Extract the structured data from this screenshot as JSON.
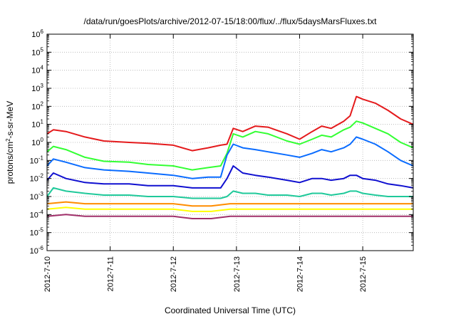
{
  "chart_data": {
    "type": "line",
    "title": "/data/run/goesPlots/archive/2012-07-15/18:00/flux/../flux/5daysMarsFluxes.txt",
    "xlabel": "Coordinated Universal Time (UTC)",
    "ylabel_parts": [
      "protons/cm",
      "2",
      "-s-sr-MeV"
    ],
    "y_scale": "log",
    "ylim": [
      1e-06,
      1000000.0
    ],
    "x_ticks": [
      "2012-7-10",
      "2012-7-11",
      "2012-7-12",
      "2012-7-13",
      "2012-7-14",
      "2012-7-15"
    ],
    "xlim_days": [
      0,
      5.8
    ],
    "y_tick_exponents": [
      -6,
      -5,
      -4,
      -3,
      -2,
      -1,
      0,
      1,
      2,
      3,
      4,
      5,
      6
    ],
    "grid": true,
    "series": [
      {
        "color": "#e41a1c",
        "x": [
          0.0,
          0.1,
          0.3,
          0.6,
          0.9,
          1.3,
          1.6,
          2.0,
          2.3,
          2.55,
          2.75,
          2.85,
          2.95,
          3.1,
          3.3,
          3.5,
          3.8,
          4.0,
          4.2,
          4.35,
          4.5,
          4.7,
          4.8,
          4.9,
          5.0,
          5.2,
          5.4,
          5.6,
          5.8
        ],
        "y": [
          3,
          5,
          4,
          2,
          1.2,
          1,
          0.9,
          0.7,
          0.35,
          0.5,
          0.7,
          0.8,
          6,
          4,
          8,
          7,
          3,
          1.5,
          4,
          8,
          6,
          15,
          30,
          350,
          250,
          150,
          60,
          20,
          10
        ]
      },
      {
        "color": "#33ff33",
        "x": [
          0.0,
          0.1,
          0.3,
          0.6,
          0.9,
          1.3,
          1.6,
          2.0,
          2.3,
          2.55,
          2.75,
          2.85,
          2.95,
          3.1,
          3.3,
          3.5,
          3.8,
          4.0,
          4.2,
          4.35,
          4.5,
          4.7,
          4.8,
          4.9,
          5.0,
          5.2,
          5.4,
          5.6,
          5.8
        ],
        "y": [
          0.3,
          0.6,
          0.4,
          0.15,
          0.09,
          0.08,
          0.06,
          0.05,
          0.03,
          0.04,
          0.05,
          0.25,
          3,
          2,
          4,
          3,
          1.2,
          0.8,
          1.5,
          2.5,
          2,
          5,
          7,
          15,
          12,
          6,
          3,
          1,
          0.5
        ]
      },
      {
        "color": "#0a6cff",
        "x": [
          0.0,
          0.1,
          0.3,
          0.6,
          0.9,
          1.3,
          1.6,
          2.0,
          2.3,
          2.55,
          2.75,
          2.85,
          2.95,
          3.1,
          3.3,
          3.5,
          3.8,
          4.0,
          4.2,
          4.35,
          4.5,
          4.7,
          4.8,
          4.9,
          5.0,
          5.2,
          5.4,
          5.6,
          5.8
        ],
        "y": [
          0.05,
          0.12,
          0.08,
          0.04,
          0.03,
          0.025,
          0.02,
          0.015,
          0.01,
          0.012,
          0.012,
          0.2,
          0.8,
          0.5,
          0.4,
          0.3,
          0.2,
          0.15,
          0.25,
          0.4,
          0.3,
          0.5,
          0.8,
          2,
          1.5,
          0.8,
          0.3,
          0.1,
          0.05
        ]
      },
      {
        "color": "#1010d0",
        "x": [
          0.0,
          0.1,
          0.3,
          0.6,
          0.9,
          1.3,
          1.6,
          2.0,
          2.3,
          2.55,
          2.75,
          2.85,
          2.95,
          3.1,
          3.3,
          3.5,
          3.8,
          4.0,
          4.2,
          4.35,
          4.5,
          4.7,
          4.8,
          4.9,
          5.0,
          5.2,
          5.4,
          5.6,
          5.8
        ],
        "y": [
          0.008,
          0.02,
          0.01,
          0.006,
          0.005,
          0.005,
          0.004,
          0.004,
          0.003,
          0.003,
          0.003,
          0.01,
          0.05,
          0.02,
          0.015,
          0.012,
          0.008,
          0.006,
          0.01,
          0.01,
          0.008,
          0.01,
          0.015,
          0.015,
          0.01,
          0.008,
          0.005,
          0.004,
          0.003
        ]
      },
      {
        "color": "#1fc99a",
        "x": [
          0.0,
          0.1,
          0.3,
          0.6,
          0.9,
          1.3,
          1.6,
          2.0,
          2.3,
          2.55,
          2.75,
          2.85,
          2.95,
          3.1,
          3.3,
          3.5,
          3.8,
          4.0,
          4.2,
          4.35,
          4.5,
          4.7,
          4.8,
          4.9,
          5.0,
          5.2,
          5.4,
          5.6,
          5.8
        ],
        "y": [
          0.001,
          0.003,
          0.002,
          0.0015,
          0.0012,
          0.0012,
          0.001,
          0.001,
          0.0008,
          0.0008,
          0.0008,
          0.001,
          0.002,
          0.0015,
          0.0015,
          0.0012,
          0.0012,
          0.001,
          0.0015,
          0.0015,
          0.0012,
          0.0015,
          0.002,
          0.002,
          0.0015,
          0.0012,
          0.001,
          0.001,
          0.001
        ]
      },
      {
        "color": "#ff8c00",
        "x": [
          0.0,
          0.3,
          0.6,
          0.9,
          1.3,
          1.6,
          2.0,
          2.3,
          2.6,
          2.9,
          3.2,
          3.5,
          3.8,
          4.1,
          4.4,
          4.7,
          5.0,
          5.3,
          5.6,
          5.8
        ],
        "y": [
          0.0004,
          0.0005,
          0.0004,
          0.0004,
          0.0004,
          0.0004,
          0.0004,
          0.0003,
          0.0003,
          0.0004,
          0.0004,
          0.0004,
          0.0004,
          0.0004,
          0.0004,
          0.0004,
          0.0004,
          0.0004,
          0.0004,
          0.0004
        ]
      },
      {
        "color": "#ffff00",
        "x": [
          0.0,
          0.3,
          0.6,
          0.9,
          1.3,
          1.6,
          2.0,
          2.3,
          2.6,
          2.9,
          3.2,
          3.5,
          3.8,
          4.1,
          4.4,
          4.7,
          5.0,
          5.3,
          5.6,
          5.8
        ],
        "y": [
          0.0002,
          0.00025,
          0.0002,
          0.0002,
          0.0002,
          0.0002,
          0.0002,
          0.00015,
          0.00015,
          0.0002,
          0.0002,
          0.0002,
          0.0002,
          0.0002,
          0.0002,
          0.0002,
          0.0002,
          0.0002,
          0.0002,
          0.0002
        ]
      },
      {
        "color": "#a0306a",
        "x": [
          0.0,
          0.3,
          0.6,
          0.9,
          1.3,
          1.6,
          2.0,
          2.3,
          2.6,
          2.9,
          3.2,
          3.5,
          3.8,
          4.1,
          4.4,
          4.7,
          5.0,
          5.3,
          5.6,
          5.8
        ],
        "y": [
          8e-05,
          0.0001,
          8e-05,
          8e-05,
          8e-05,
          8e-05,
          8e-05,
          6e-05,
          6e-05,
          8e-05,
          8e-05,
          8e-05,
          8e-05,
          8e-05,
          8e-05,
          8e-05,
          8e-05,
          8e-05,
          8e-05,
          8e-05
        ]
      }
    ]
  }
}
